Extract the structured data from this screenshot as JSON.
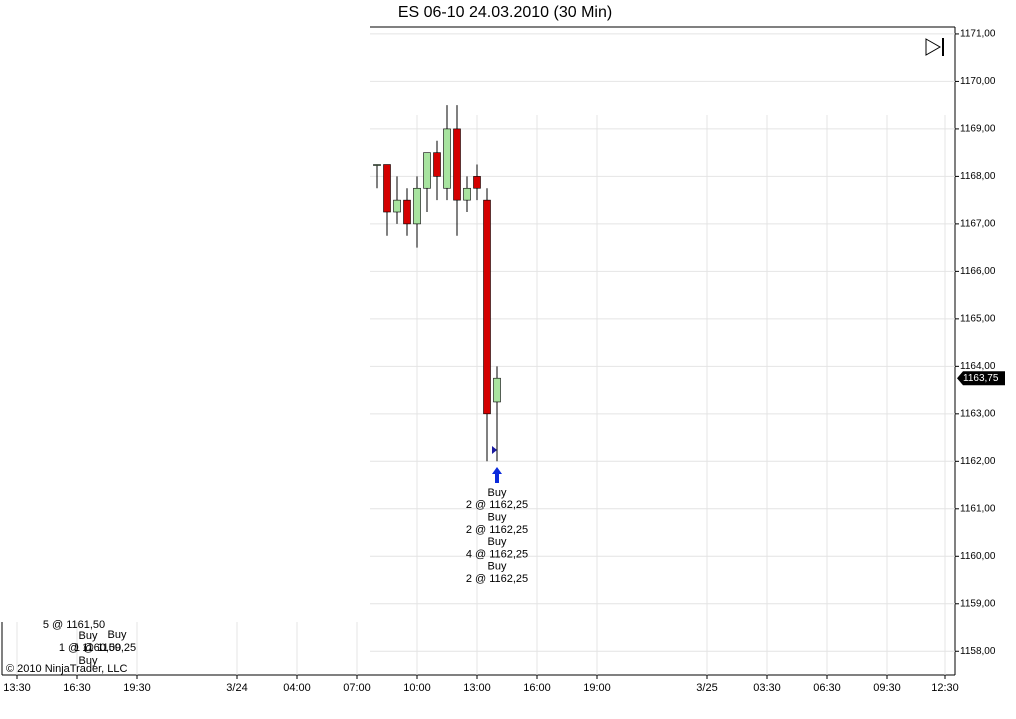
{
  "chart_data": {
    "type": "candlestick",
    "title": "ES 06-10  24.03.2010 (30 Min)",
    "x": [
      36,
      37,
      38,
      39,
      40,
      41,
      42,
      43,
      44,
      45,
      46,
      47,
      48
    ],
    "open": [
      1168.25,
      1168.25,
      1167.25,
      1167.5,
      1167,
      1167.75,
      1168.5,
      1167.75,
      1169,
      1167.5,
      1168,
      1167.5,
      1163.25
    ],
    "high": [
      1168.25,
      1168.25,
      1168,
      1167.75,
      1168,
      1168.5,
      1168.75,
      1169.5,
      1169.5,
      1168,
      1168.25,
      1167.75,
      1164
    ],
    "low": [
      1167.75,
      1166.75,
      1167,
      1166.75,
      1166.5,
      1167.25,
      1167.5,
      1167.5,
      1166.75,
      1167.25,
      1167.5,
      1162,
      1162
    ],
    "close": [
      1168.25,
      1167.25,
      1167.5,
      1167,
      1167.75,
      1168.5,
      1168,
      1169,
      1167.5,
      1167.75,
      1167.75,
      1163,
      1163.75
    ],
    "up_color": "#a8e4a0",
    "down_color": "#d40000",
    "ylim": [
      1157.5,
      1171.125
    ],
    "yticks": [
      {
        "value": 1158,
        "label": "1158,00"
      },
      {
        "value": 1159,
        "label": "1159,00"
      },
      {
        "value": 1160,
        "label": "1160,00"
      },
      {
        "value": 1161,
        "label": "1161,00"
      },
      {
        "value": 1162,
        "label": "1162,00"
      },
      {
        "value": 1163,
        "label": "1163,00"
      },
      {
        "value": 1164,
        "label": "1164,00"
      },
      {
        "value": 1165,
        "label": "1165,00"
      },
      {
        "value": 1166,
        "label": "1166,00"
      },
      {
        "value": 1167,
        "label": "1167,00"
      },
      {
        "value": 1168,
        "label": "1168,00"
      },
      {
        "value": 1169,
        "label": "1169,00"
      },
      {
        "value": 1170,
        "label": "1170,00"
      },
      {
        "value": 1171,
        "label": "1171,00"
      }
    ],
    "xlim": [
      -1.7,
      93.8
    ],
    "xticks": [
      {
        "value": 0,
        "label": "13:30"
      },
      {
        "value": 6,
        "label": "16:30"
      },
      {
        "value": 12,
        "label": "19:30"
      },
      {
        "value": 22,
        "label": "3/24"
      },
      {
        "value": 28,
        "label": "04:00"
      },
      {
        "value": 34,
        "label": "07:00"
      },
      {
        "value": 40,
        "label": "10:00"
      },
      {
        "value": 46,
        "label": "13:00"
      },
      {
        "value": 52,
        "label": "16:00"
      },
      {
        "value": 58,
        "label": "19:00"
      },
      {
        "value": 69,
        "label": "3/25"
      },
      {
        "value": 75,
        "label": "03:30"
      },
      {
        "value": 81,
        "label": "06:30"
      },
      {
        "value": 87,
        "label": "09:30"
      },
      {
        "value": 92.8,
        "label": "12:30"
      }
    ],
    "last_value": 1163.75,
    "last_value_label": "1163,75",
    "trade_labels": [
      "Buy",
      "2 @ 1162,25",
      "Buy",
      "2 @ 1162,25",
      "Buy",
      "4 @ 1162,25",
      "Buy",
      "2 @ 1162,25"
    ],
    "left_labels": [
      "5 @ 1161,50",
      "Buy",
      "Buy",
      "1 @ 1160,00",
      "1 @ 1159,25",
      "Buy"
    ],
    "copyright": "© 2010 NinjaTrader, LLC"
  }
}
